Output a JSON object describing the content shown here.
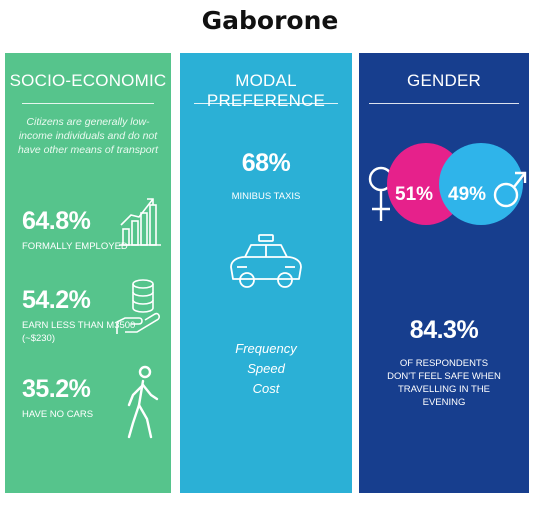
{
  "title": "Gaborone",
  "socio": {
    "heading": "SOCIO-ECONOMIC",
    "intro": "Citizens are generally low-income individuals and do not have other means of transport",
    "stats": [
      {
        "value": "64.8%",
        "label": "FORMALLY EMPLOYED",
        "icon": "bar-chart-icon"
      },
      {
        "value": "54.2%",
        "label": "EARN LESS THAN M3500",
        "label2": "(~$230)",
        "icon": "coins-hand-icon"
      },
      {
        "value": "35.2%",
        "label": "HAVE NO CARS",
        "icon": "walking-person-icon"
      }
    ]
  },
  "modal": {
    "heading": "MODAL PREFERENCE",
    "value": "68%",
    "label": "MINIBUS TAXIS",
    "icon": "taxi-icon",
    "reasons": [
      "Frequency",
      "Speed",
      "Cost"
    ]
  },
  "gender": {
    "heading": "GENDER",
    "female": "51%",
    "male": "49%",
    "female_color": "#e6218b",
    "male_color": "#2fb4ea",
    "value": "84.3%",
    "label_lines": [
      "OF RESPONDENTS",
      "DON'T FEEL SAFE WHEN",
      "TRAVELLING IN THE",
      "EVENING"
    ]
  },
  "colors": {
    "green": "#56c48c",
    "cyan": "#2bb0d6",
    "navy": "#173e8e"
  }
}
